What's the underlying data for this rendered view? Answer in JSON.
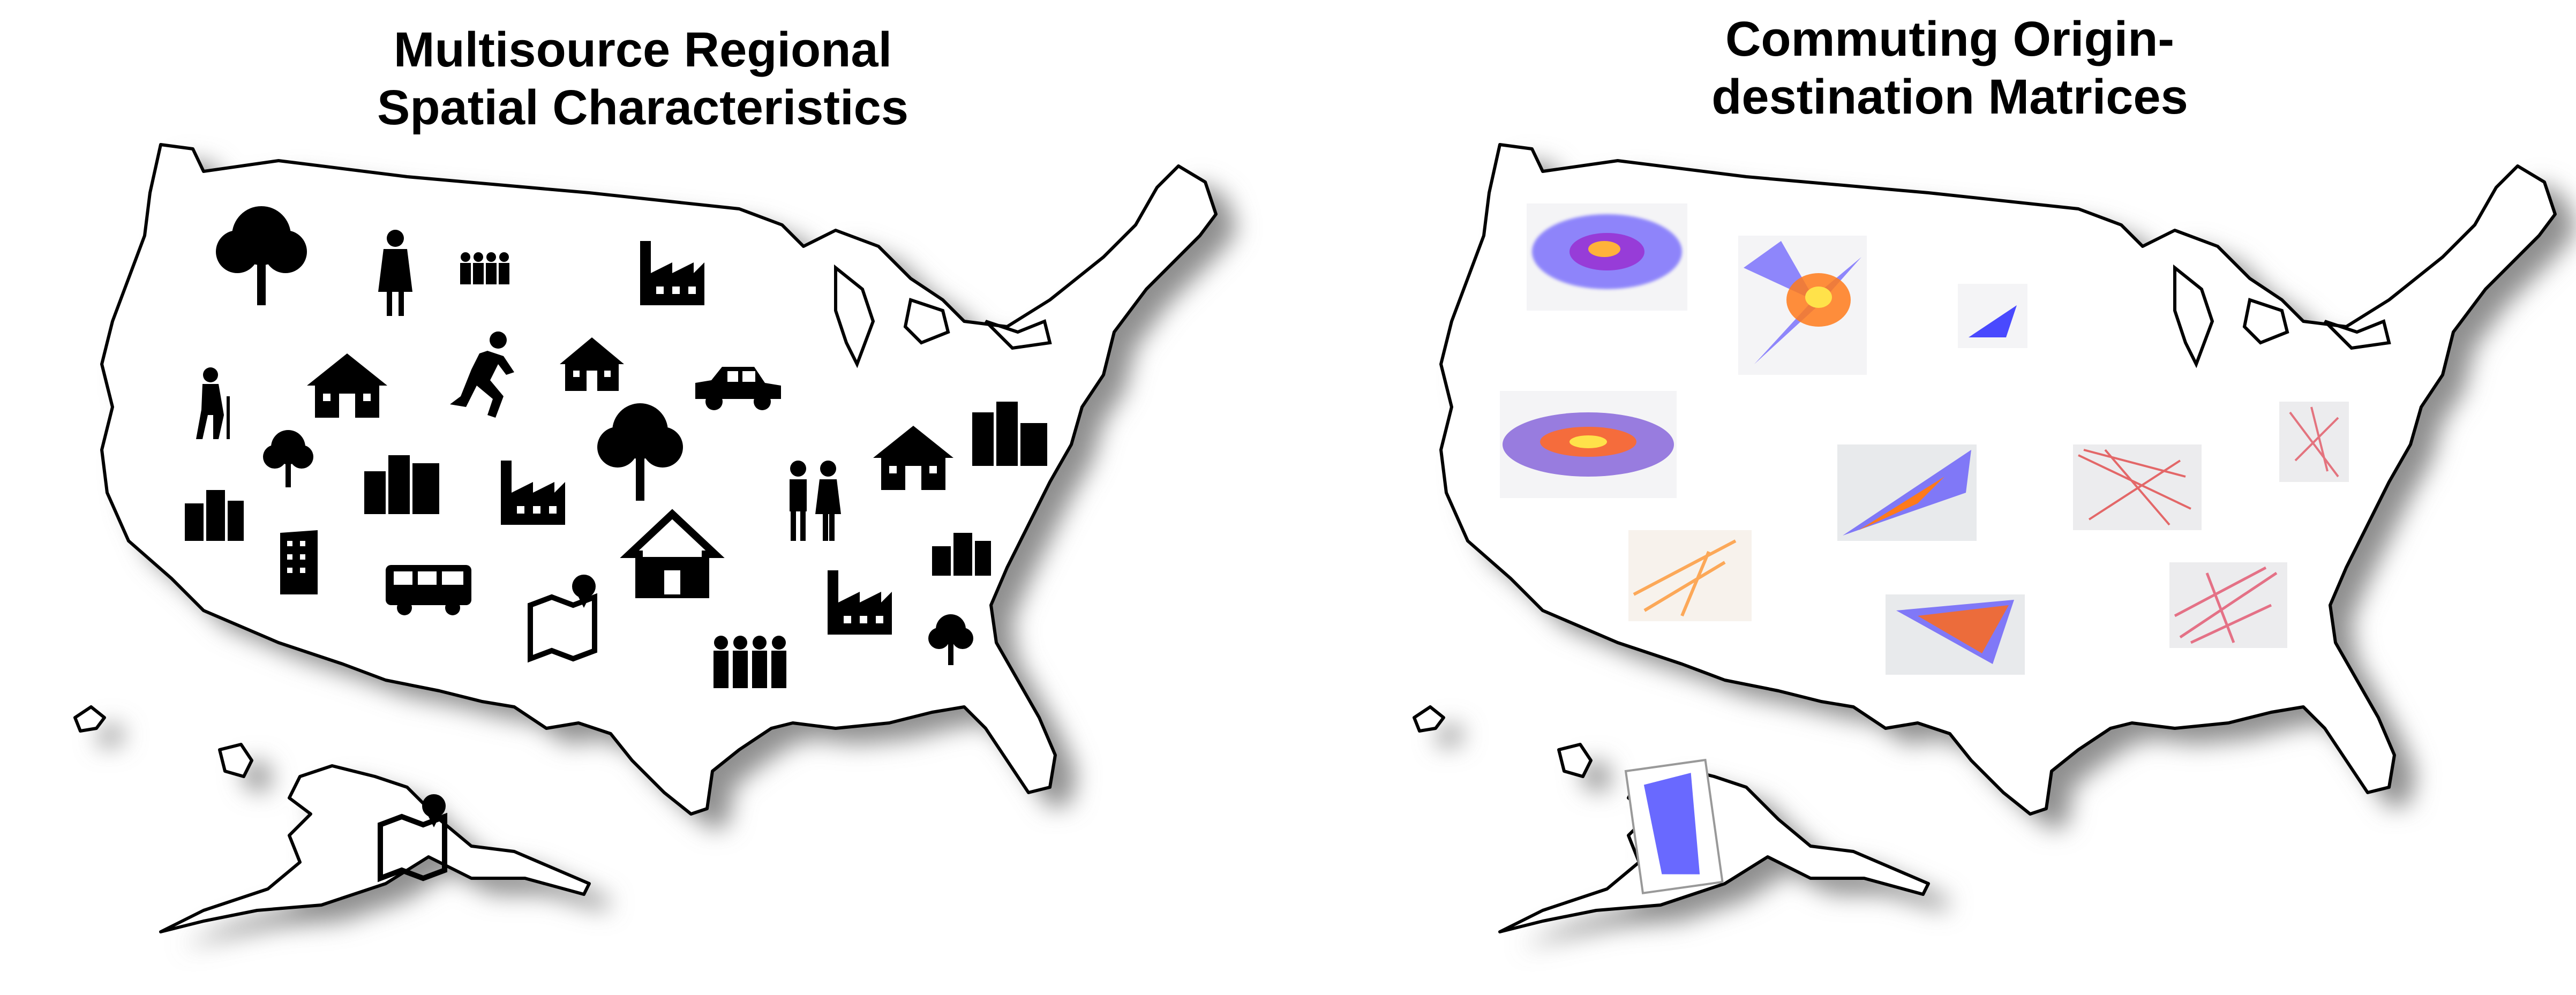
{
  "left_panel": {
    "title_line1": "Multisource Regional",
    "title_line2": "Spatial Characteristics",
    "icons": [
      "tree-icon",
      "woman-icon",
      "group-icon",
      "factory-icon",
      "elderly-icon",
      "school-icon",
      "runner-icon",
      "school-icon",
      "car-icon",
      "school-icon",
      "city-icon",
      "tree-icon",
      "city-icon",
      "factory-icon",
      "tree-icon",
      "couple-icon",
      "city-icon",
      "building-icon",
      "bus-icon",
      "map-pin-icon",
      "house-icon",
      "factory-icon",
      "city-icon",
      "tree-icon",
      "group-icon",
      "map-pin-icon"
    ]
  },
  "right_panel": {
    "title_line1": "Commuting Origin-",
    "title_line2": "destination Matrices",
    "flow_map_colors": {
      "blue": "#2a2aff",
      "orange": "#ff8a1a",
      "red": "#e03030",
      "yellow": "#ffe24a"
    }
  }
}
